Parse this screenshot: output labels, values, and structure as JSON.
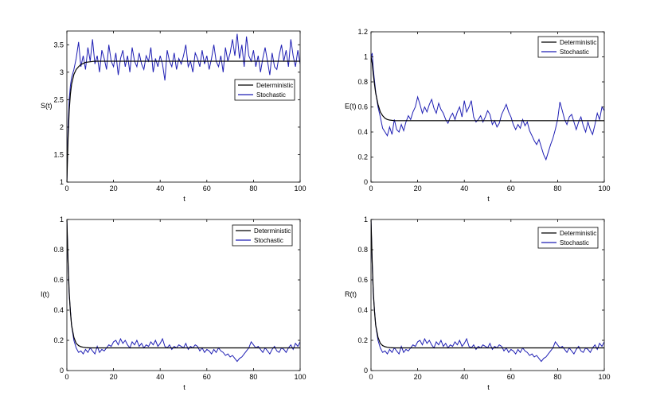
{
  "chart_data": [
    {
      "type": "line",
      "ylabel": "S(t)",
      "xlabel": "t",
      "xlim": [
        0,
        100
      ],
      "ylim": [
        1,
        3.75
      ],
      "xticks": [
        0,
        20,
        40,
        60,
        80,
        100
      ],
      "yticks": [
        1,
        1.5,
        2,
        2.5,
        3,
        3.5
      ],
      "ytick_labels": [
        "1",
        "1.5",
        "2",
        "2.5",
        "3",
        "3.5"
      ],
      "legend_position": "center-right",
      "series": [
        {
          "name": "Deterministic",
          "color": "#000000",
          "x": [
            0,
            0.5,
            1,
            1.5,
            2,
            3,
            4,
            5,
            6,
            7,
            8,
            10,
            12,
            15,
            20,
            30,
            50,
            100
          ],
          "y": [
            1.0,
            1.8,
            2.3,
            2.6,
            2.78,
            2.96,
            3.05,
            3.1,
            3.14,
            3.16,
            3.18,
            3.19,
            3.2,
            3.2,
            3.2,
            3.2,
            3.2,
            3.2
          ]
        },
        {
          "name": "Stochastic",
          "color": "#1f1fb4",
          "x": [
            0,
            0.5,
            1,
            1.5,
            2,
            3,
            4,
            5,
            6,
            7,
            8,
            9,
            10,
            11,
            12,
            13,
            14,
            15,
            16,
            17,
            18,
            19,
            20,
            21,
            22,
            23,
            24,
            25,
            26,
            27,
            28,
            29,
            30,
            31,
            32,
            33,
            34,
            35,
            36,
            37,
            38,
            39,
            40,
            41,
            42,
            43,
            44,
            45,
            46,
            47,
            48,
            49,
            50,
            51,
            52,
            53,
            54,
            55,
            56,
            57,
            58,
            59,
            60,
            61,
            62,
            63,
            64,
            65,
            66,
            67,
            68,
            69,
            70,
            71,
            72,
            73,
            74,
            75,
            76,
            77,
            78,
            79,
            80,
            81,
            82,
            83,
            84,
            85,
            86,
            87,
            88,
            89,
            90,
            91,
            92,
            93,
            94,
            95,
            96,
            97,
            98,
            99,
            100
          ],
          "y": [
            1.0,
            2.0,
            2.5,
            2.75,
            2.9,
            3.05,
            3.25,
            3.55,
            3.1,
            3.3,
            3.05,
            3.45,
            3.2,
            3.6,
            3.15,
            3.3,
            3.0,
            3.4,
            3.25,
            3.05,
            3.5,
            3.2,
            3.1,
            3.35,
            2.95,
            3.25,
            3.4,
            3.1,
            3.3,
            3.0,
            3.45,
            3.2,
            3.1,
            3.35,
            3.15,
            3.05,
            3.3,
            3.2,
            3.45,
            3.0,
            3.25,
            3.1,
            3.3,
            3.15,
            2.85,
            3.4,
            3.2,
            3.1,
            3.35,
            3.05,
            3.25,
            3.15,
            3.3,
            3.5,
            3.1,
            3.2,
            3.0,
            3.35,
            3.25,
            3.1,
            3.4,
            3.15,
            3.3,
            3.05,
            3.25,
            3.5,
            3.2,
            3.1,
            3.3,
            3.0,
            3.45,
            3.2,
            3.35,
            3.6,
            3.3,
            3.7,
            3.25,
            3.5,
            3.1,
            3.65,
            3.3,
            3.2,
            3.4,
            3.1,
            3.3,
            3.0,
            3.25,
            3.45,
            3.2,
            2.95,
            3.35,
            3.1,
            3.05,
            3.3,
            3.5,
            3.2,
            3.4,
            3.1,
            3.6,
            3.3,
            3.1,
            3.4,
            3.15
          ]
        }
      ]
    },
    {
      "type": "line",
      "ylabel": "E(t)",
      "xlabel": "t",
      "xlim": [
        0,
        100
      ],
      "ylim": [
        0,
        1.2
      ],
      "xticks": [
        0,
        20,
        40,
        60,
        80,
        100
      ],
      "yticks": [
        0,
        0.2,
        0.4,
        0.6,
        0.8,
        1,
        1.2
      ],
      "ytick_labels": [
        "0",
        "0.2",
        "0.4",
        "0.6",
        "0.8",
        "1",
        "1.2"
      ],
      "legend_position": "top-right",
      "series": [
        {
          "name": "Deterministic",
          "color": "#000000",
          "x": [
            0,
            0.5,
            1,
            1.5,
            2,
            3,
            4,
            5,
            6,
            7,
            8,
            10,
            12,
            15,
            20,
            100
          ],
          "y": [
            1.0,
            0.95,
            0.86,
            0.78,
            0.71,
            0.62,
            0.56,
            0.53,
            0.51,
            0.5,
            0.495,
            0.49,
            0.49,
            0.49,
            0.49,
            0.49
          ]
        },
        {
          "name": "Stochastic",
          "color": "#1f1fb4",
          "x": [
            0,
            0.5,
            1,
            2,
            3,
            4,
            5,
            6,
            7,
            8,
            9,
            10,
            11,
            12,
            13,
            14,
            15,
            16,
            17,
            18,
            19,
            20,
            21,
            22,
            23,
            24,
            25,
            26,
            27,
            28,
            29,
            30,
            31,
            32,
            33,
            34,
            35,
            36,
            37,
            38,
            39,
            40,
            41,
            42,
            43,
            44,
            45,
            46,
            47,
            48,
            49,
            50,
            51,
            52,
            53,
            54,
            55,
            56,
            57,
            58,
            59,
            60,
            61,
            62,
            63,
            64,
            65,
            66,
            67,
            68,
            69,
            70,
            71,
            72,
            73,
            74,
            75,
            76,
            77,
            78,
            79,
            80,
            81,
            82,
            83,
            84,
            85,
            86,
            87,
            88,
            89,
            90,
            91,
            92,
            93,
            94,
            95,
            96,
            97,
            98,
            99,
            100
          ],
          "y": [
            1.0,
            1.03,
            0.9,
            0.72,
            0.6,
            0.52,
            0.43,
            0.4,
            0.37,
            0.44,
            0.38,
            0.5,
            0.42,
            0.4,
            0.46,
            0.41,
            0.48,
            0.53,
            0.5,
            0.56,
            0.6,
            0.68,
            0.62,
            0.55,
            0.6,
            0.56,
            0.62,
            0.66,
            0.59,
            0.55,
            0.63,
            0.58,
            0.55,
            0.5,
            0.47,
            0.52,
            0.55,
            0.5,
            0.56,
            0.6,
            0.52,
            0.65,
            0.56,
            0.6,
            0.65,
            0.52,
            0.48,
            0.5,
            0.53,
            0.48,
            0.52,
            0.57,
            0.54,
            0.46,
            0.49,
            0.44,
            0.47,
            0.54,
            0.58,
            0.62,
            0.56,
            0.52,
            0.46,
            0.42,
            0.46,
            0.43,
            0.5,
            0.45,
            0.48,
            0.41,
            0.37,
            0.33,
            0.3,
            0.34,
            0.28,
            0.22,
            0.18,
            0.24,
            0.3,
            0.35,
            0.42,
            0.5,
            0.64,
            0.57,
            0.5,
            0.46,
            0.52,
            0.54,
            0.48,
            0.42,
            0.48,
            0.52,
            0.45,
            0.4,
            0.48,
            0.42,
            0.38,
            0.46,
            0.55,
            0.5,
            0.6,
            0.57
          ]
        }
      ]
    },
    {
      "type": "line",
      "ylabel": "I(t)",
      "xlabel": "t",
      "xlim": [
        0,
        100
      ],
      "ylim": [
        0,
        1
      ],
      "xticks": [
        0,
        20,
        40,
        60,
        80,
        100
      ],
      "yticks": [
        0,
        0.2,
        0.4,
        0.6,
        0.8,
        1
      ],
      "ytick_labels": [
        "0",
        "0.2",
        "0.4",
        "0.6",
        "0.8",
        "1"
      ],
      "legend_position": "top-right",
      "series": [
        {
          "name": "Deterministic",
          "color": "#000000",
          "x": [
            0,
            0.5,
            1,
            1.5,
            2,
            3,
            4,
            5,
            6,
            7,
            8,
            10,
            12,
            15,
            20,
            100
          ],
          "y": [
            1.0,
            0.72,
            0.52,
            0.39,
            0.3,
            0.22,
            0.18,
            0.165,
            0.158,
            0.154,
            0.152,
            0.15,
            0.15,
            0.15,
            0.15,
            0.15
          ]
        },
        {
          "name": "Stochastic",
          "color": "#1f1fb4",
          "x": [
            0,
            0.5,
            1,
            2,
            3,
            4,
            5,
            6,
            7,
            8,
            9,
            10,
            11,
            12,
            13,
            14,
            15,
            16,
            17,
            18,
            19,
            20,
            21,
            22,
            23,
            24,
            25,
            26,
            27,
            28,
            29,
            30,
            31,
            32,
            33,
            34,
            35,
            36,
            37,
            38,
            39,
            40,
            41,
            42,
            43,
            44,
            45,
            46,
            47,
            48,
            49,
            50,
            51,
            52,
            53,
            54,
            55,
            56,
            57,
            58,
            59,
            60,
            61,
            62,
            63,
            64,
            65,
            66,
            67,
            68,
            69,
            70,
            71,
            72,
            73,
            74,
            75,
            76,
            77,
            78,
            79,
            80,
            81,
            82,
            83,
            84,
            85,
            86,
            87,
            88,
            89,
            90,
            91,
            92,
            93,
            94,
            95,
            96,
            97,
            98,
            99,
            100
          ],
          "y": [
            1.0,
            0.7,
            0.5,
            0.3,
            0.2,
            0.15,
            0.12,
            0.13,
            0.11,
            0.14,
            0.12,
            0.15,
            0.13,
            0.11,
            0.16,
            0.12,
            0.14,
            0.13,
            0.15,
            0.17,
            0.16,
            0.19,
            0.2,
            0.17,
            0.21,
            0.18,
            0.2,
            0.17,
            0.15,
            0.19,
            0.17,
            0.2,
            0.16,
            0.18,
            0.15,
            0.17,
            0.16,
            0.19,
            0.17,
            0.2,
            0.16,
            0.18,
            0.21,
            0.16,
            0.15,
            0.17,
            0.14,
            0.16,
            0.15,
            0.17,
            0.16,
            0.15,
            0.18,
            0.14,
            0.16,
            0.15,
            0.17,
            0.16,
            0.13,
            0.15,
            0.12,
            0.14,
            0.13,
            0.11,
            0.14,
            0.12,
            0.15,
            0.13,
            0.12,
            0.1,
            0.11,
            0.09,
            0.1,
            0.08,
            0.06,
            0.08,
            0.09,
            0.11,
            0.13,
            0.15,
            0.19,
            0.17,
            0.15,
            0.16,
            0.14,
            0.12,
            0.15,
            0.13,
            0.11,
            0.14,
            0.16,
            0.13,
            0.12,
            0.15,
            0.14,
            0.12,
            0.15,
            0.17,
            0.14,
            0.18,
            0.16,
            0.19
          ]
        }
      ]
    },
    {
      "type": "line",
      "ylabel": "R(t)",
      "xlabel": "t",
      "xlim": [
        0,
        100
      ],
      "ylim": [
        0,
        1
      ],
      "xticks": [
        0,
        20,
        40,
        60,
        80,
        100
      ],
      "yticks": [
        0,
        0.2,
        0.4,
        0.6,
        0.8,
        1
      ],
      "ytick_labels": [
        "0",
        "0.2",
        "0.4",
        "0.6",
        "0.8",
        "1"
      ],
      "legend_position": "top-right",
      "series": [
        {
          "name": "Deterministic",
          "color": "#000000",
          "x": [
            0,
            0.5,
            1,
            1.5,
            2,
            3,
            4,
            5,
            6,
            7,
            8,
            10,
            12,
            15,
            20,
            100
          ],
          "y": [
            1.0,
            0.72,
            0.52,
            0.39,
            0.3,
            0.22,
            0.18,
            0.165,
            0.158,
            0.154,
            0.152,
            0.15,
            0.15,
            0.15,
            0.15,
            0.15
          ]
        },
        {
          "name": "Stochastic",
          "color": "#1f1fb4",
          "x": [
            0,
            0.5,
            1,
            2,
            3,
            4,
            5,
            6,
            7,
            8,
            9,
            10,
            11,
            12,
            13,
            14,
            15,
            16,
            17,
            18,
            19,
            20,
            21,
            22,
            23,
            24,
            25,
            26,
            27,
            28,
            29,
            30,
            31,
            32,
            33,
            34,
            35,
            36,
            37,
            38,
            39,
            40,
            41,
            42,
            43,
            44,
            45,
            46,
            47,
            48,
            49,
            50,
            51,
            52,
            53,
            54,
            55,
            56,
            57,
            58,
            59,
            60,
            61,
            62,
            63,
            64,
            65,
            66,
            67,
            68,
            69,
            70,
            71,
            72,
            73,
            74,
            75,
            76,
            77,
            78,
            79,
            80,
            81,
            82,
            83,
            84,
            85,
            86,
            87,
            88,
            89,
            90,
            91,
            92,
            93,
            94,
            95,
            96,
            97,
            98,
            99,
            100
          ],
          "y": [
            1.0,
            0.7,
            0.5,
            0.3,
            0.2,
            0.15,
            0.12,
            0.13,
            0.11,
            0.14,
            0.12,
            0.15,
            0.13,
            0.11,
            0.16,
            0.12,
            0.14,
            0.13,
            0.15,
            0.17,
            0.16,
            0.19,
            0.2,
            0.17,
            0.21,
            0.18,
            0.2,
            0.17,
            0.15,
            0.19,
            0.17,
            0.2,
            0.16,
            0.18,
            0.15,
            0.17,
            0.16,
            0.19,
            0.17,
            0.2,
            0.16,
            0.18,
            0.21,
            0.16,
            0.15,
            0.17,
            0.14,
            0.16,
            0.15,
            0.17,
            0.16,
            0.15,
            0.18,
            0.14,
            0.16,
            0.15,
            0.17,
            0.16,
            0.13,
            0.15,
            0.12,
            0.14,
            0.13,
            0.11,
            0.14,
            0.12,
            0.15,
            0.13,
            0.12,
            0.1,
            0.11,
            0.09,
            0.1,
            0.08,
            0.06,
            0.08,
            0.09,
            0.11,
            0.13,
            0.15,
            0.19,
            0.17,
            0.15,
            0.16,
            0.14,
            0.12,
            0.15,
            0.13,
            0.11,
            0.14,
            0.16,
            0.13,
            0.12,
            0.15,
            0.14,
            0.12,
            0.15,
            0.17,
            0.14,
            0.18,
            0.16,
            0.19
          ]
        }
      ]
    }
  ]
}
